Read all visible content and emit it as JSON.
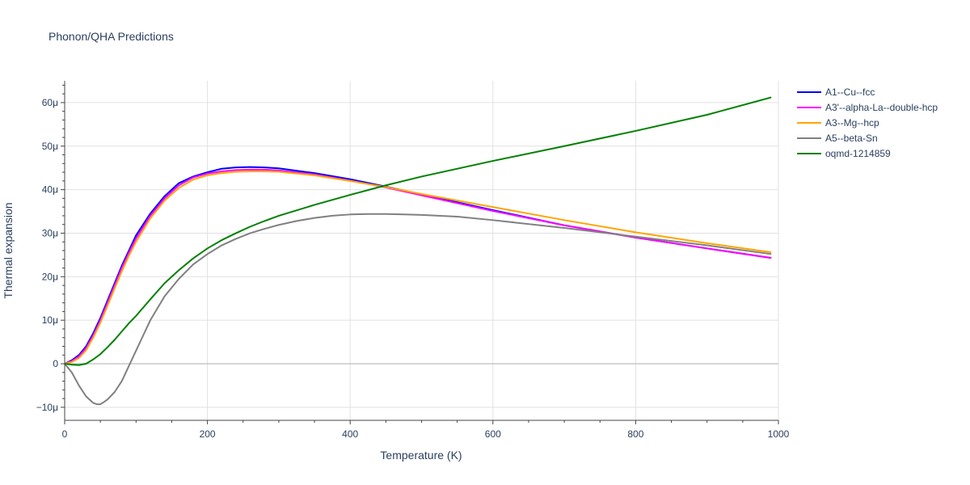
{
  "chart_data": {
    "type": "line",
    "title": "Phonon/QHA Predictions",
    "xlabel": "Temperature (K)",
    "ylabel": "Thermal expansion",
    "xlim": [
      0,
      1000
    ],
    "ylim": [
      -13,
      65
    ],
    "x_ticks": [
      0,
      200,
      400,
      600,
      800,
      1000
    ],
    "y_ticks": [
      -10,
      0,
      10,
      20,
      30,
      40,
      50,
      60
    ],
    "y_tick_labels": [
      "−10μ",
      "0",
      "10μ",
      "20μ",
      "30μ",
      "40μ",
      "50μ",
      "60μ"
    ],
    "grid": true,
    "legend_position": "top-right",
    "series": [
      {
        "name": "A1--Cu--fcc",
        "color": "#0000ff",
        "x": [
          0,
          10,
          20,
          30,
          40,
          50,
          60,
          70,
          80,
          90,
          100,
          120,
          140,
          160,
          180,
          200,
          220,
          240,
          260,
          280,
          300,
          350,
          400,
          450,
          500,
          600,
          700,
          800,
          900,
          990
        ],
        "y": [
          0,
          0.8,
          2,
          4,
          7,
          10.5,
          14.5,
          18.5,
          22.5,
          26,
          29.5,
          34.5,
          38.5,
          41.5,
          43,
          44,
          44.8,
          45.1,
          45.2,
          45.1,
          44.9,
          43.8,
          42.4,
          40.7,
          38.9,
          35.3,
          31.8,
          29,
          26.5,
          24.3
        ]
      },
      {
        "name": "A3'--alpha-La--double-hcp",
        "color": "#ff00ff",
        "x": [
          0,
          10,
          20,
          30,
          40,
          50,
          60,
          70,
          80,
          90,
          100,
          120,
          140,
          160,
          180,
          200,
          220,
          240,
          260,
          280,
          300,
          350,
          400,
          450,
          500,
          600,
          700,
          800,
          900,
          990
        ],
        "y": [
          0,
          0.6,
          1.7,
          3.6,
          6.5,
          10,
          14,
          18,
          22,
          25.5,
          28.8,
          34,
          38,
          41,
          42.8,
          43.7,
          44.2,
          44.5,
          44.6,
          44.6,
          44.4,
          43.5,
          42.1,
          40.5,
          38.7,
          35.1,
          31.8,
          29,
          26.5,
          24.3
        ]
      },
      {
        "name": "A3--Mg--hcp",
        "color": "#ffa500",
        "x": [
          0,
          10,
          20,
          30,
          40,
          50,
          60,
          70,
          80,
          90,
          100,
          120,
          140,
          160,
          180,
          200,
          220,
          240,
          260,
          280,
          300,
          350,
          400,
          450,
          500,
          600,
          700,
          800,
          900,
          990
        ],
        "y": [
          0,
          0.4,
          1.3,
          3.1,
          6,
          9.4,
          13.3,
          17.3,
          21.2,
          24.8,
          28,
          33.4,
          37.5,
          40.4,
          42.3,
          43.3,
          43.8,
          44.1,
          44.2,
          44.2,
          44.1,
          43.3,
          42,
          40.6,
          39,
          36,
          33,
          30.2,
          27.7,
          25.6
        ]
      },
      {
        "name": "A5--beta-Sn",
        "color": "#808080",
        "x": [
          0,
          10,
          20,
          30,
          40,
          45,
          50,
          55,
          60,
          70,
          80,
          90,
          100,
          110,
          120,
          140,
          160,
          180,
          200,
          220,
          240,
          260,
          280,
          300,
          325,
          350,
          375,
          400,
          425,
          450,
          475,
          500,
          550,
          600,
          700,
          800,
          900,
          990
        ],
        "y": [
          0,
          -2,
          -5,
          -7.5,
          -9,
          -9.3,
          -9.3,
          -8.8,
          -8.2,
          -6.5,
          -4,
          -0.5,
          3,
          6.5,
          10,
          15.5,
          19.5,
          22.8,
          25.2,
          27.2,
          28.7,
          30,
          31,
          31.9,
          32.8,
          33.5,
          34,
          34.3,
          34.4,
          34.4,
          34.3,
          34.2,
          33.8,
          33,
          31.2,
          29.2,
          27.2,
          25.2
        ]
      },
      {
        "name": "oqmd-1214859",
        "color": "#008000",
        "x": [
          0,
          10,
          20,
          30,
          40,
          50,
          60,
          70,
          80,
          90,
          100,
          120,
          140,
          160,
          180,
          200,
          220,
          240,
          260,
          280,
          300,
          350,
          400,
          450,
          500,
          600,
          700,
          800,
          900,
          990
        ],
        "y": [
          0,
          -0.2,
          -0.3,
          0,
          1,
          2.2,
          3.8,
          5.5,
          7.4,
          9.3,
          11,
          14.8,
          18.5,
          21.5,
          24.2,
          26.5,
          28.4,
          30,
          31.5,
          32.8,
          34,
          36.5,
          38.8,
          41,
          43,
          46.6,
          50,
          53.5,
          57.2,
          61.2
        ]
      }
    ]
  }
}
